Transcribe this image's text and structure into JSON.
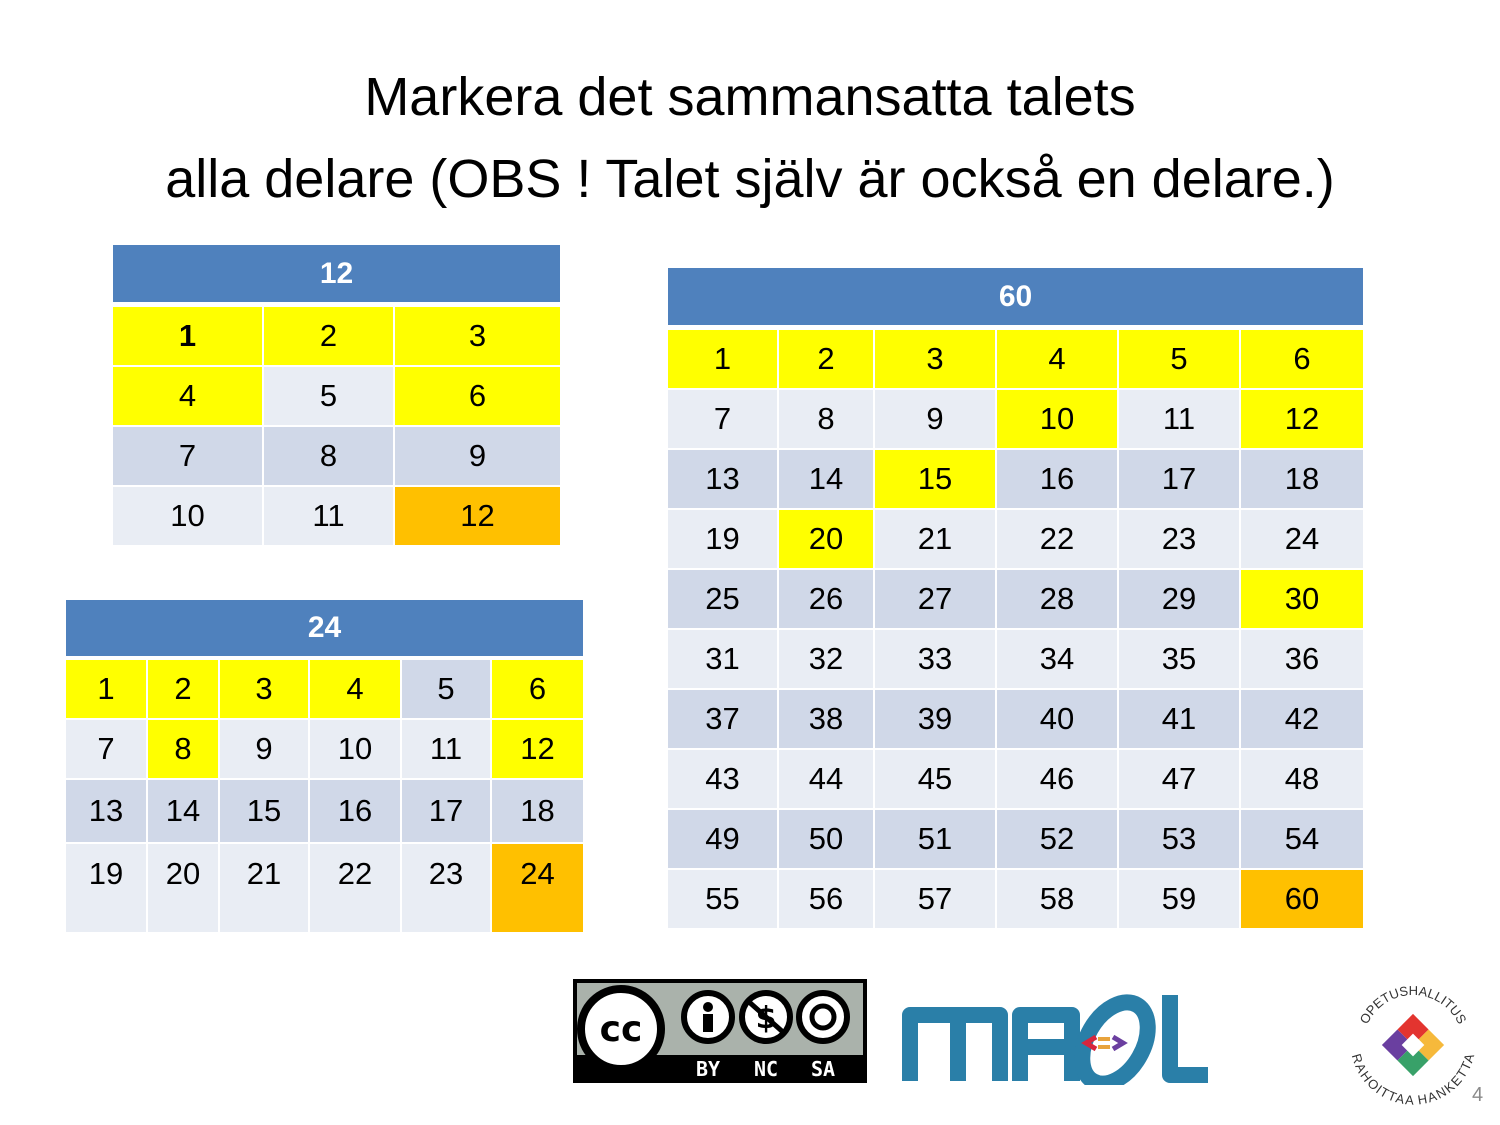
{
  "title": [
    "Markera det sammansatta talets",
    "alla delare (OBS ! Talet själv är också en delare.)"
  ],
  "tables": [
    {
      "header": 12,
      "rows": [
        [
          1,
          2,
          3
        ],
        [
          4,
          5,
          6
        ],
        [
          7,
          8,
          9
        ],
        [
          10,
          11,
          12
        ]
      ]
    },
    {
      "header": 24,
      "rows": [
        [
          1,
          2,
          3,
          4,
          5,
          6
        ],
        [
          7,
          8,
          9,
          10,
          11,
          12
        ],
        [
          13,
          14,
          15,
          16,
          17,
          18
        ],
        [
          19,
          20,
          21,
          22,
          23,
          24
        ]
      ]
    },
    {
      "header": 60,
      "rows": [
        [
          1,
          2,
          3,
          4,
          5,
          6
        ],
        [
          7,
          8,
          9,
          10,
          11,
          12
        ],
        [
          13,
          14,
          15,
          16,
          17,
          18
        ],
        [
          19,
          20,
          21,
          22,
          23,
          24
        ],
        [
          25,
          26,
          27,
          28,
          29,
          30
        ],
        [
          31,
          32,
          33,
          34,
          35,
          36
        ],
        [
          37,
          38,
          39,
          40,
          41,
          42
        ],
        [
          43,
          44,
          45,
          46,
          47,
          48
        ],
        [
          49,
          50,
          51,
          52,
          53,
          54
        ],
        [
          55,
          56,
          57,
          58,
          59,
          60
        ]
      ]
    }
  ],
  "license": [
    "BY",
    "NC",
    "SA"
  ],
  "logo_text": [
    "OPETUSHALLITUS",
    "RAHOITTAA HANKETTA"
  ],
  "page_number": "4"
}
